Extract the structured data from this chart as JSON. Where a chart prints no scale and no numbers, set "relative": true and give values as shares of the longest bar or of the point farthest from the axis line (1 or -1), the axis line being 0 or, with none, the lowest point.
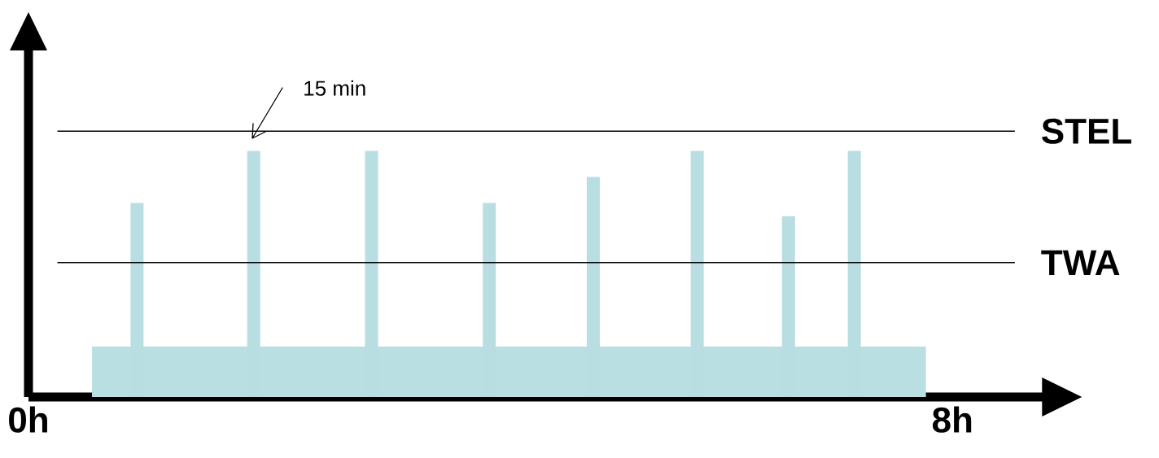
{
  "chart_data": {
    "type": "bar",
    "relative": true,
    "tick_labels": "x",
    "xlim": [
      0,
      8.79
    ],
    "xticks": [
      {
        "value": 0,
        "label": "0h"
      },
      {
        "value": 8,
        "label": "8h"
      }
    ],
    "series": [
      {
        "type": "area",
        "color": "#badfe2",
        "x": [
          0.55,
          7.77
        ],
        "values": [
          0.205,
          0.205
        ]
      },
      {
        "color": "#b9dee1",
        "x": [
          0.94,
          1.95,
          2.97,
          3.99,
          4.89,
          5.79,
          6.58,
          7.15
        ],
        "values": [
          0.788,
          1.0,
          1.0,
          0.788,
          0.894,
          1.0,
          0.735,
          1.0
        ]
      }
    ],
    "ref_lines": [
      {
        "axis": "y",
        "value": 1.08,
        "label": "STEL",
        "color": "#000000"
      },
      {
        "axis": "y",
        "value": 0.546,
        "label": "TWA",
        "color": "#000000"
      }
    ],
    "annotations": [
      "15 min"
    ]
  }
}
